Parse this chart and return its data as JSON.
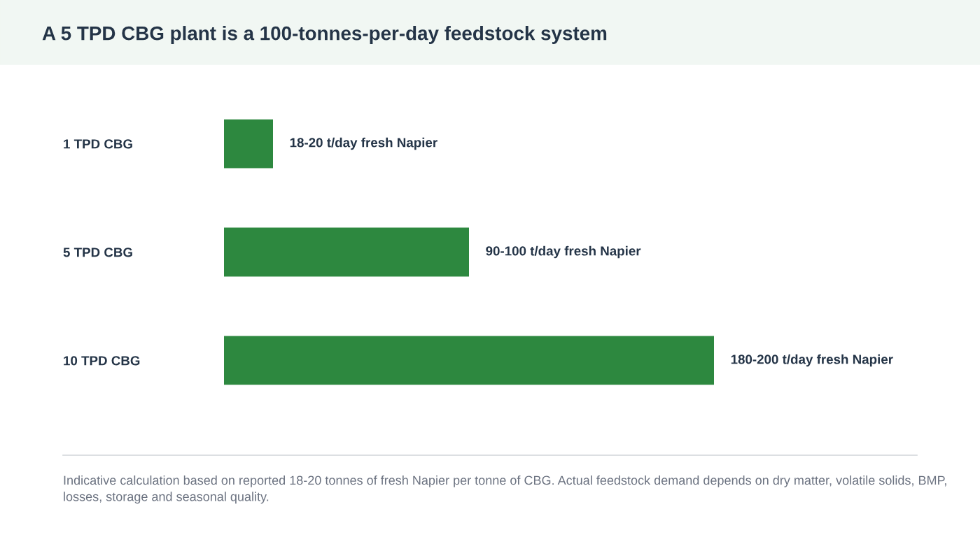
{
  "chart_data": {
    "type": "bar",
    "orientation": "horizontal",
    "title": "A 5 TPD CBG plant is a 100-tonnes-per-day feedstock system",
    "categories": [
      "1 TPD CBG",
      "5 TPD CBG",
      "10 TPD CBG"
    ],
    "values": [
      18,
      90,
      180
    ],
    "value_labels": [
      "18-20 t/day fresh Napier",
      "90-100 t/day fresh Napier",
      "180-200 t/day fresh Napier"
    ],
    "color": "#2d883f",
    "grid": false,
    "annotations": [
      "Indicative calculation based on reported 18-20 tonnes of fresh Napier per tonne of CBG. Actual feedstock demand depends on dry matter, volatile solids, BMP, losses, storage and seasonal quality."
    ]
  }
}
